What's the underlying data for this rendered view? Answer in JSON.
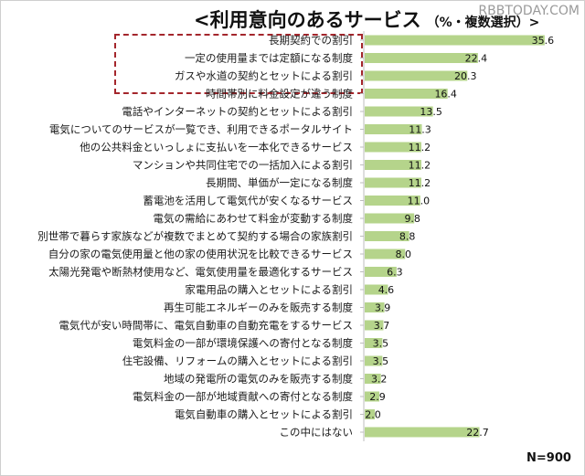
{
  "header": {
    "title": "<利用意向のあるサービス",
    "subtitle": "（%・複数選択）>"
  },
  "watermark": "RBBTODAY.COM",
  "sample_size": "N=900",
  "colors": {
    "bar": "#b5d48b",
    "highlight": "#a4262c"
  },
  "chart_data": {
    "type": "bar",
    "orientation": "horizontal",
    "title": "<利用意向のあるサービス（%・複数選択）>",
    "categories": [
      "長期契約での割引",
      "一定の使用量までは定額になる制度",
      "ガスや水道の契約とセットによる割引",
      "時間帯別に料金設定が違う制度",
      "電話やインターネットの契約とセットによる割引",
      "電気についてのサービスが一覧でき、利用できるポータルサイト",
      "他の公共料金といっしょに支払いを一本化できるサービス",
      "マンションや共同住宅での一括加入による割引",
      "長期間、単価が一定になる制度",
      "蓄電池を活用して電気代が安くなるサービス",
      "電気の需給にあわせて料金が変動する制度",
      "別世帯で暮らす家族などが複数でまとめて契約する場合の家族割引",
      "自分の家の電気使用量と他の家の使用状況を比較できるサービス",
      "太陽光発電や断熱材使用など、電気使用量を最適化するサービス",
      "家電用品の購入とセットによる割引",
      "再生可能エネルギーのみを販売する制度",
      "電気代が安い時間帯に、電気自動車の自動充電をするサービス",
      "電気料金の一部が環境保護への寄付となる制度",
      "住宅設備、リフォームの購入とセットによる割引",
      "地域の発電所の電気のみを販売する制度",
      "電気料金の一部が地域貢献への寄付となる制度",
      "電気自動車の購入とセットによる割引",
      "この中にはない"
    ],
    "values": [
      35.6,
      22.4,
      20.3,
      16.4,
      13.5,
      11.3,
      11.2,
      11.2,
      11.2,
      11.0,
      9.8,
      8.8,
      8.0,
      6.3,
      4.6,
      3.9,
      3.7,
      3.5,
      3.5,
      3.2,
      2.9,
      2.0,
      22.7
    ],
    "value_labels": [
      "35.6",
      "22.4",
      "20.3",
      "16.4",
      "13.5",
      "11.3",
      "11.2",
      "11.2",
      "11.2",
      "11.0",
      "9.8",
      "8.8",
      "8.0",
      "6.3",
      "4.6",
      "3.9",
      "3.7",
      "3.5",
      "3.5",
      "3.2",
      "2.9",
      "2.0",
      "22.7"
    ],
    "xlim": [
      0,
      40
    ],
    "grid": false,
    "highlighted_categories": [
      0,
      1,
      2
    ]
  }
}
